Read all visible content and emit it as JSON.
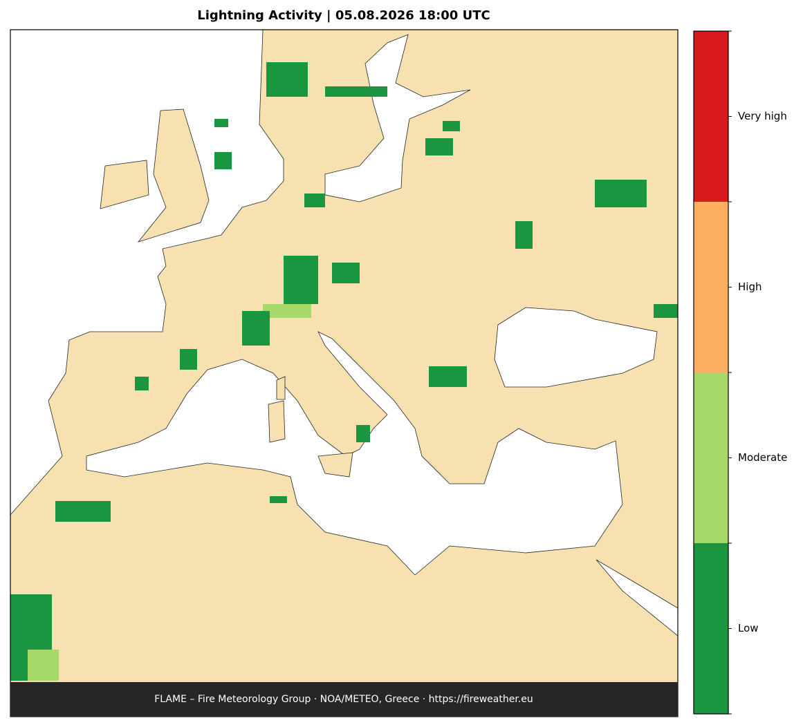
{
  "title": "Lightning Activity  |  05.08.2026 18:00 UTC",
  "footer": "FLAME – Fire Meteorology Group · NOA/METEO, Greece · https://fireweather.eu",
  "legend": {
    "levels": [
      {
        "label": "Low",
        "color": "#1a9641"
      },
      {
        "label": "Moderate",
        "color": "#a6d96a"
      },
      {
        "label": "High",
        "color": "#fdae61"
      },
      {
        "label": "Very high",
        "color": "#d7191c"
      }
    ]
  }
}
